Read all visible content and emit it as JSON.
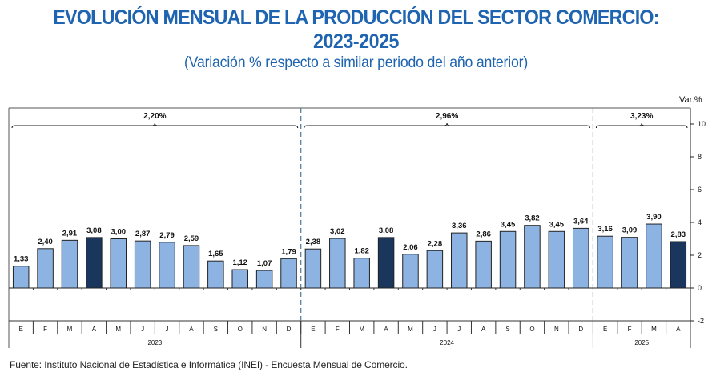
{
  "header": {
    "title_line1": "EVOLUCIÓN MENSUAL DE LA PRODUCCIÓN DEL SECTOR COMERCIO:",
    "title_line2": "2023-2025",
    "subtitle": "(Variación % respecto a similar periodo del año anterior)"
  },
  "footer": {
    "source": "Fuente: Instituto Nacional de Estadística e Informática (INEI) - Encuesta Mensual de Comercio."
  },
  "colors": {
    "title": "#1F64B0",
    "bar_regular": "#8DB3E2",
    "bar_highlight": "#1B365D",
    "divider": "#4A7A96"
  },
  "chart_data": {
    "type": "bar",
    "title": "EVOLUCIÓN MENSUAL DE LA PRODUCCIÓN DEL SECTOR COMERCIO: 2023-2025",
    "subtitle": "(Variación % respecto a similar periodo del año anterior)",
    "xlabel": "",
    "ylabel": "Var.%",
    "ylim": [
      -2,
      10
    ],
    "yticks": [
      10,
      8,
      6,
      4,
      2,
      0,
      -2
    ],
    "y_axis_position": "right",
    "grid": false,
    "categories": [
      "E",
      "F",
      "M",
      "A",
      "M",
      "J",
      "J",
      "A",
      "S",
      "O",
      "N",
      "D",
      "E",
      "F",
      "M",
      "A",
      "M",
      "J",
      "J",
      "A",
      "S",
      "O",
      "N",
      "D",
      "E",
      "F",
      "M",
      "A"
    ],
    "years": [
      {
        "label": "2023",
        "months": 12,
        "average_label": "2,20%"
      },
      {
        "label": "2024",
        "months": 12,
        "average_label": "2,96%"
      },
      {
        "label": "2025",
        "months": 4,
        "average_label": "3,23%"
      }
    ],
    "values": [
      1.33,
      2.4,
      2.91,
      3.08,
      3.0,
      2.87,
      2.79,
      2.59,
      1.65,
      1.12,
      1.07,
      1.79,
      2.38,
      3.02,
      1.82,
      3.08,
      2.06,
      2.28,
      3.36,
      2.86,
      3.45,
      3.82,
      3.45,
      3.64,
      3.16,
      3.09,
      3.9,
      2.83
    ],
    "value_labels": [
      "1,33",
      "2,40",
      "2,91",
      "3,08",
      "3,00",
      "2,87",
      "2,79",
      "2,59",
      "1,65",
      "1,12",
      "1,07",
      "1,79",
      "2,38",
      "3,02",
      "1,82",
      "3,08",
      "2,06",
      "2,28",
      "3,36",
      "2,86",
      "3,45",
      "3,82",
      "3,45",
      "3,64",
      "3,16",
      "3,09",
      "3,90",
      "2,83"
    ],
    "highlighted": [
      3,
      15,
      27
    ],
    "tick_labels": [
      "10",
      "8",
      "6",
      "4",
      "2",
      "0",
      "-2"
    ]
  }
}
